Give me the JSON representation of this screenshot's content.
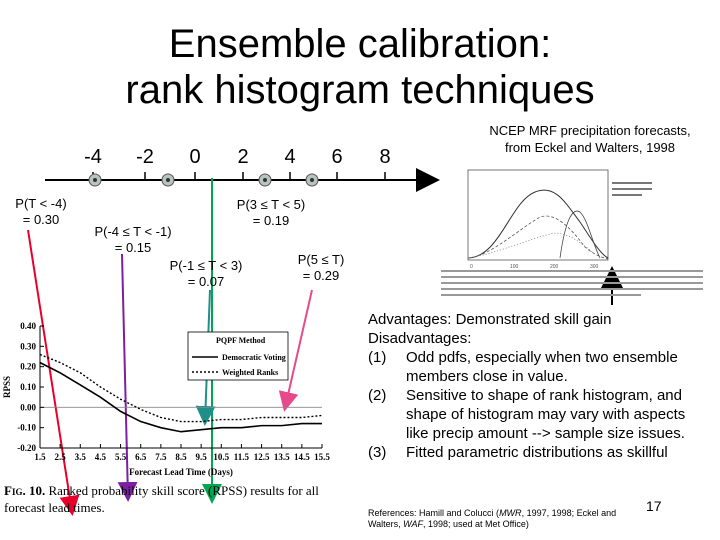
{
  "slide": {
    "title_line1": "Ensemble calibration:",
    "title_line2": "rank histogram techniques",
    "page_number": "17"
  },
  "axis": {
    "tick_labels": [
      "-4",
      "-2",
      "0",
      "2",
      "4",
      "6",
      "8"
    ]
  },
  "probabilities": [
    {
      "label": "P(T < -4)",
      "value": "= 0.30"
    },
    {
      "label": "P(-4 ≤ T < -1)",
      "value": "= 0.15"
    },
    {
      "label": "P(-1 ≤ T < 3)",
      "value": "= 0.07"
    },
    {
      "label": "P(3 ≤ T < 5)",
      "value": "= 0.19"
    },
    {
      "label": "P(5 ≤ T)",
      "value": "= 0.29"
    }
  ],
  "colors": {
    "red": "#e8002a",
    "purple": "#7b1fa2",
    "green": "#00a651",
    "teal": "#1f8f8a",
    "pink": "#e64a8c",
    "marker": "#b8c4c0"
  },
  "ncep": {
    "line1": "NCEP MRF precipitation forecasts,",
    "line2": "from Eckel and Walters, 1998"
  },
  "advantages": {
    "adv_head": "Advantages",
    "adv_text": ": Demonstrated skill gain",
    "dis_head": "Disadvantages",
    "dis_text": ":",
    "items": [
      {
        "num": "(1)",
        "text": "Odd pdfs, especially when two ensemble members close in value."
      },
      {
        "num": "(2)",
        "text": "Sensitive to shape of rank histogram, and shape of histogram may vary with aspects like precip amount --> sample size issues."
      },
      {
        "num": "(3)",
        "text": "Fitted parametric distributions as skillful"
      }
    ]
  },
  "references": {
    "prefix": "References: Hamill and Colucci (",
    "j1": "MWR",
    "mid": ", 1997, 1998; Eckel and Walters, ",
    "j2": "WAF",
    "suffix": ", 1998; used at Met Office)"
  },
  "rpss_chart": {
    "ylabel": "RPSS",
    "xlabel": "Forecast Lead Time (Days)",
    "yticks": [
      "0.40",
      "0.30",
      "0.20",
      "0.10",
      "0.00",
      "-0.10",
      "-0.20"
    ],
    "xticks": [
      "1.5",
      "2.5",
      "3.5",
      "4.5",
      "5.5",
      "6.5",
      "7.5",
      "8.5",
      "9.5",
      "10.5",
      "11.5",
      "12.5",
      "13.5",
      "14.5",
      "15.5"
    ],
    "legend": [
      "PQPF Method",
      "Democratic Voting",
      "Weighted Ranks"
    ],
    "caption_fig": "Fig. 10.",
    "caption_text": " Ranked probability skill score (RPSS) results for all forecast lead times."
  },
  "chart_data": {
    "type": "line",
    "title": "",
    "xlabel": "Forecast Lead Time (Days)",
    "ylabel": "RPSS",
    "x": [
      1.5,
      2.5,
      3.5,
      4.5,
      5.5,
      6.5,
      7.5,
      8.5,
      9.5,
      10.5,
      11.5,
      12.5,
      13.5,
      14.5,
      15.5
    ],
    "ylim": [
      -0.2,
      0.4
    ],
    "series": [
      {
        "name": "Democratic Voting",
        "values": [
          0.22,
          0.17,
          0.11,
          0.05,
          -0.02,
          -0.07,
          -0.1,
          -0.12,
          -0.11,
          -0.1,
          -0.1,
          -0.09,
          -0.09,
          -0.08,
          -0.08
        ]
      },
      {
        "name": "Weighted Ranks",
        "values": [
          0.26,
          0.22,
          0.17,
          0.1,
          0.04,
          -0.01,
          -0.05,
          -0.07,
          -0.07,
          -0.06,
          -0.06,
          -0.05,
          -0.05,
          -0.05,
          -0.04
        ]
      }
    ]
  }
}
